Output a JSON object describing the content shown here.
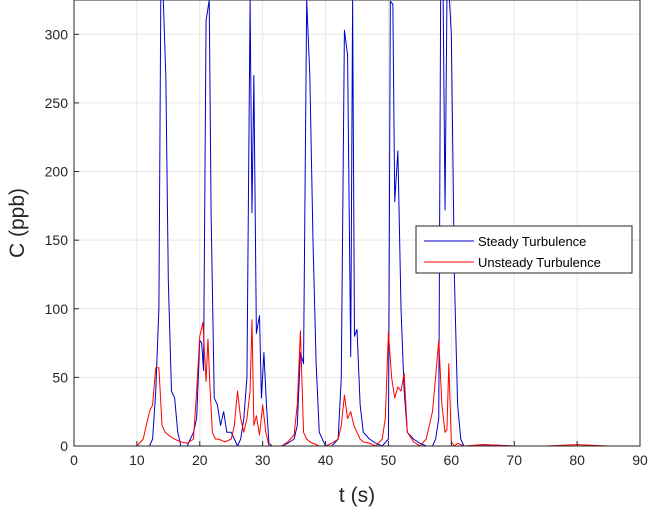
{
  "chart_data": {
    "type": "line",
    "title": "",
    "xlabel": "t (s)",
    "ylabel": "C (ppb)",
    "xlim": [
      0,
      90
    ],
    "ylim": [
      0,
      325
    ],
    "xticks": [
      0,
      10,
      20,
      30,
      40,
      50,
      60,
      70,
      80,
      90
    ],
    "yticks": [
      0,
      50,
      100,
      150,
      200,
      250,
      300
    ],
    "grid": true,
    "legend_position": "right",
    "series": [
      {
        "name": "Steady Turbulence",
        "color": "#0000cd",
        "x": [
          0,
          5,
          10,
          12,
          12.5,
          13,
          13.5,
          13.8,
          14.2,
          14.6,
          15,
          15.5,
          16,
          16.5,
          17,
          18,
          18.5,
          19,
          19.5,
          20,
          20.3,
          20.6,
          21,
          21.5,
          21.8,
          22.3,
          22.8,
          23.3,
          23.8,
          24.3,
          25,
          26,
          26.5,
          27,
          27.5,
          28,
          28.3,
          28.6,
          29,
          29.5,
          29.8,
          30.2,
          30.6,
          31,
          31.5,
          32,
          33,
          34,
          35,
          35.5,
          36,
          36.5,
          37,
          37.5,
          38,
          38.5,
          39,
          40,
          41,
          42,
          42.5,
          43,
          43.5,
          44,
          44.3,
          44.6,
          45,
          45.5,
          46,
          47,
          48,
          49,
          50,
          50.3,
          50.7,
          51,
          51.5,
          52,
          52.5,
          53,
          54,
          55,
          56,
          57,
          57.5,
          58,
          58.3,
          58.7,
          59,
          59.3,
          59.7,
          60,
          60.5,
          61,
          61.5,
          62,
          63,
          65,
          70,
          80,
          90
        ],
        "y": [
          0,
          0,
          0,
          0,
          5,
          40,
          100,
          325,
          325,
          270,
          120,
          40,
          35,
          10,
          0,
          0,
          5,
          10,
          20,
          77,
          75,
          55,
          310,
          325,
          170,
          35,
          30,
          15,
          25,
          10,
          10,
          0,
          5,
          20,
          50,
          325,
          170,
          270,
          82,
          95,
          35,
          68,
          30,
          2,
          0,
          0,
          0,
          2,
          5,
          15,
          68,
          60,
          325,
          270,
          150,
          60,
          10,
          0,
          0,
          5,
          50,
          303,
          285,
          65,
          325,
          80,
          85,
          30,
          10,
          5,
          2,
          0,
          5,
          324,
          322,
          178,
          215,
          100,
          40,
          10,
          5,
          2,
          0,
          0,
          5,
          20,
          325,
          325,
          172,
          325,
          325,
          300,
          120,
          30,
          5,
          0,
          0,
          1,
          0,
          0,
          0
        ]
      },
      {
        "name": "Unsteady Turbulence",
        "color": "#ff0000",
        "x": [
          0,
          5,
          10,
          11,
          11.5,
          12,
          12.5,
          13,
          13.5,
          14,
          14.5,
          15,
          16,
          17,
          18,
          19,
          19.5,
          20,
          20.5,
          21,
          21.3,
          21.6,
          22,
          22.5,
          23,
          24,
          25,
          25.5,
          26,
          26.5,
          27,
          27.5,
          28,
          28.3,
          28.6,
          29,
          29.5,
          30,
          30.5,
          31,
          32,
          33,
          34,
          35,
          35.5,
          36,
          36.5,
          37,
          37.5,
          38,
          39,
          40,
          41,
          42,
          42.5,
          43,
          43.5,
          44,
          44.5,
          45,
          45.5,
          46,
          47,
          48,
          49,
          49.5,
          50,
          50.5,
          51,
          51.5,
          52,
          52.5,
          53,
          54,
          55,
          56,
          57,
          57.5,
          58,
          58.5,
          59,
          59.3,
          59.6,
          60,
          60.5,
          61,
          62,
          65,
          70,
          75,
          80,
          85,
          90
        ],
        "y": [
          0,
          0,
          0,
          5,
          15,
          25,
          30,
          57,
          57,
          15,
          10,
          8,
          5,
          3,
          2,
          5,
          40,
          80,
          90,
          47,
          78,
          45,
          10,
          5,
          5,
          3,
          5,
          15,
          40,
          20,
          10,
          20,
          40,
          92,
          15,
          22,
          8,
          30,
          10,
          0,
          0,
          0,
          3,
          8,
          30,
          84,
          10,
          5,
          3,
          2,
          0,
          0,
          2,
          5,
          15,
          37,
          20,
          25,
          15,
          10,
          5,
          3,
          2,
          0,
          5,
          20,
          83,
          50,
          35,
          43,
          40,
          53,
          10,
          3,
          0,
          5,
          25,
          50,
          77,
          30,
          10,
          12,
          60,
          3,
          0,
          2,
          0,
          1,
          0,
          0,
          1,
          0,
          0
        ]
      }
    ]
  }
}
